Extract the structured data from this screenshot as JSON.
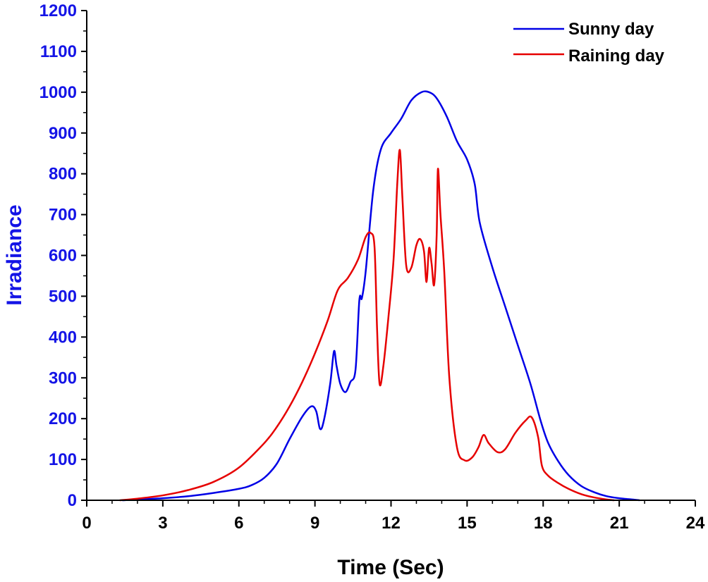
{
  "chart_data": {
    "type": "line",
    "xlabel": "Time (Sec)",
    "ylabel": "Irradiance",
    "xlim": [
      0,
      24
    ],
    "ylim": [
      0,
      1200
    ],
    "xticks": [
      "0",
      "3",
      "6",
      "9",
      "12",
      "15",
      "18",
      "21",
      "24"
    ],
    "yticks": [
      "0",
      "100",
      "200",
      "300",
      "400",
      "500",
      "600",
      "700",
      "800",
      "900",
      "1000",
      "1100",
      "1200"
    ],
    "grid": false,
    "legend_position": "top-right",
    "colors": {
      "y_axis": "#1414e6",
      "x_axis": "#000000"
    },
    "series": [
      {
        "name": "Sunny day",
        "color": "#0000e6",
        "points": [
          [
            1.4,
            0
          ],
          [
            3,
            5
          ],
          [
            4,
            10
          ],
          [
            5,
            18
          ],
          [
            6,
            28
          ],
          [
            6.5,
            37
          ],
          [
            7,
            55
          ],
          [
            7.5,
            90
          ],
          [
            8,
            150
          ],
          [
            8.5,
            205
          ],
          [
            8.85,
            230
          ],
          [
            9.05,
            218
          ],
          [
            9.2,
            175
          ],
          [
            9.35,
            195
          ],
          [
            9.6,
            285
          ],
          [
            9.75,
            365
          ],
          [
            9.85,
            330
          ],
          [
            10,
            285
          ],
          [
            10.2,
            265
          ],
          [
            10.4,
            290
          ],
          [
            10.6,
            320
          ],
          [
            10.75,
            490
          ],
          [
            10.85,
            495
          ],
          [
            11.0,
            560
          ],
          [
            11.3,
            760
          ],
          [
            11.6,
            860
          ],
          [
            12.0,
            900
          ],
          [
            12.4,
            935
          ],
          [
            12.8,
            980
          ],
          [
            13.2,
            1000
          ],
          [
            13.5,
            1000
          ],
          [
            13.8,
            985
          ],
          [
            14.2,
            940
          ],
          [
            14.6,
            880
          ],
          [
            15.0,
            835
          ],
          [
            15.3,
            775
          ],
          [
            15.5,
            680
          ],
          [
            16.0,
            570
          ],
          [
            16.5,
            475
          ],
          [
            17.0,
            380
          ],
          [
            17.5,
            285
          ],
          [
            17.9,
            195
          ],
          [
            18.2,
            140
          ],
          [
            18.6,
            95
          ],
          [
            19.0,
            62
          ],
          [
            19.5,
            35
          ],
          [
            20.0,
            20
          ],
          [
            20.5,
            10
          ],
          [
            21.0,
            5
          ],
          [
            21.5,
            2
          ],
          [
            21.8,
            0
          ]
        ]
      },
      {
        "name": "Raining day",
        "color": "#e60000",
        "points": [
          [
            1.3,
            0
          ],
          [
            2,
            4
          ],
          [
            3,
            12
          ],
          [
            4,
            25
          ],
          [
            5,
            45
          ],
          [
            6,
            80
          ],
          [
            7,
            140
          ],
          [
            7.5,
            180
          ],
          [
            8,
            230
          ],
          [
            8.5,
            290
          ],
          [
            9,
            360
          ],
          [
            9.5,
            440
          ],
          [
            9.9,
            515
          ],
          [
            10.3,
            545
          ],
          [
            10.7,
            590
          ],
          [
            11.0,
            645
          ],
          [
            11.2,
            655
          ],
          [
            11.35,
            620
          ],
          [
            11.45,
            420
          ],
          [
            11.55,
            285
          ],
          [
            11.7,
            330
          ],
          [
            11.9,
            450
          ],
          [
            12.1,
            590
          ],
          [
            12.25,
            780
          ],
          [
            12.35,
            858
          ],
          [
            12.45,
            740
          ],
          [
            12.6,
            575
          ],
          [
            12.8,
            570
          ],
          [
            13.0,
            625
          ],
          [
            13.15,
            640
          ],
          [
            13.3,
            610
          ],
          [
            13.4,
            535
          ],
          [
            13.5,
            618
          ],
          [
            13.6,
            580
          ],
          [
            13.7,
            528
          ],
          [
            13.8,
            650
          ],
          [
            13.85,
            812
          ],
          [
            13.95,
            700
          ],
          [
            14.1,
            560
          ],
          [
            14.3,
            300
          ],
          [
            14.6,
            130
          ],
          [
            14.9,
            98
          ],
          [
            15.2,
            105
          ],
          [
            15.45,
            130
          ],
          [
            15.65,
            160
          ],
          [
            15.85,
            140
          ],
          [
            16.2,
            118
          ],
          [
            16.5,
            125
          ],
          [
            16.9,
            165
          ],
          [
            17.3,
            195
          ],
          [
            17.55,
            203
          ],
          [
            17.8,
            155
          ],
          [
            17.95,
            85
          ],
          [
            18.2,
            60
          ],
          [
            18.6,
            42
          ],
          [
            19.0,
            28
          ],
          [
            19.5,
            15
          ],
          [
            20.0,
            7
          ],
          [
            20.5,
            2
          ],
          [
            20.8,
            0
          ]
        ]
      }
    ]
  }
}
